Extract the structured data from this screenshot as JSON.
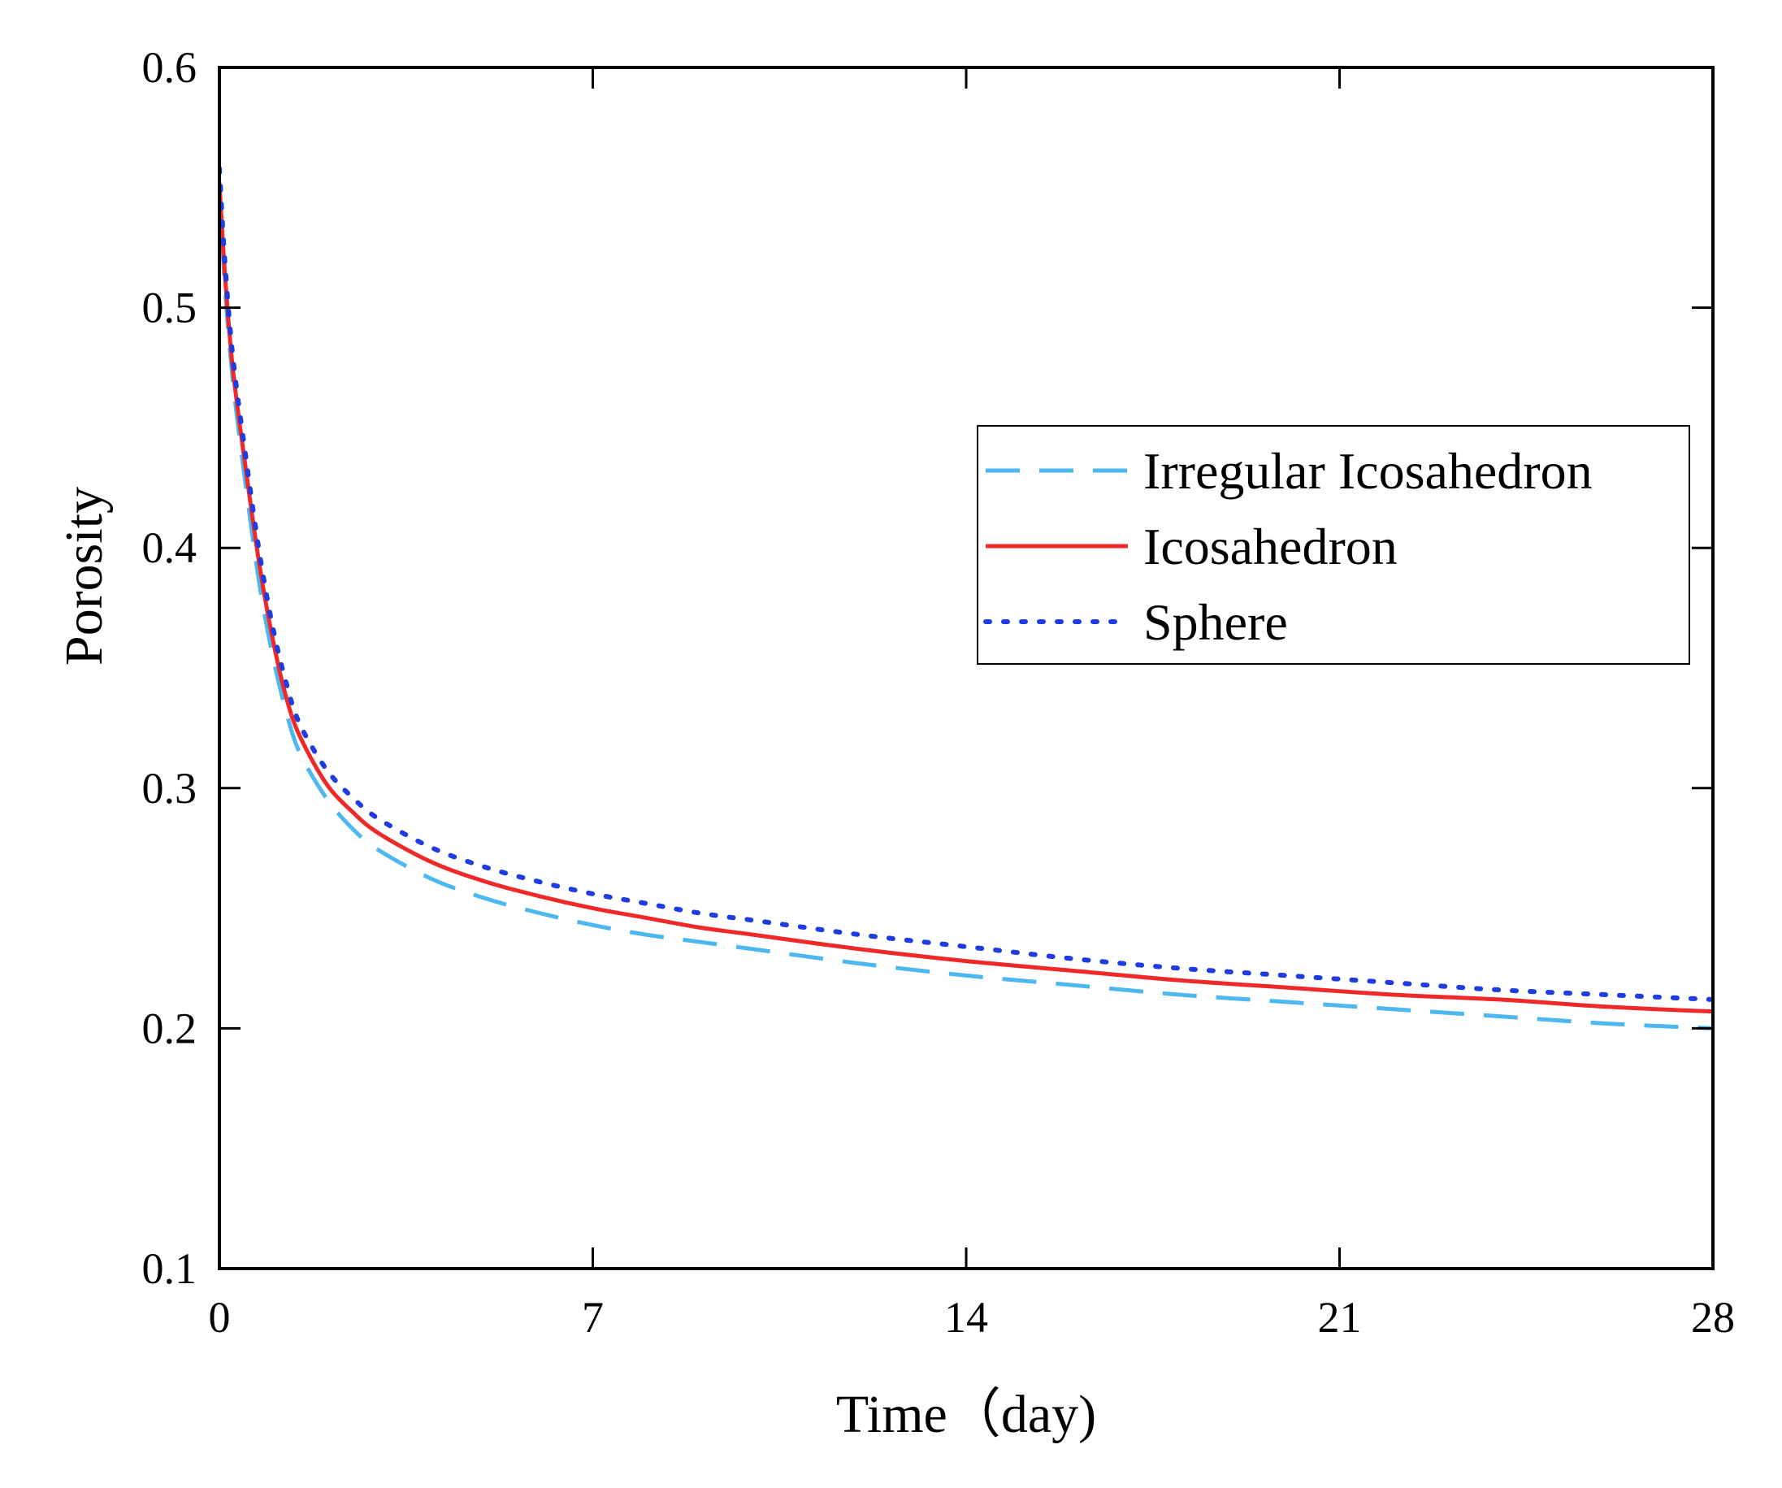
{
  "chart_data": {
    "type": "line",
    "title": "",
    "xlabel": "Time（day)",
    "ylabel": "Porosity",
    "xlim": [
      0,
      28
    ],
    "ylim": [
      0.1,
      0.6
    ],
    "xticks": [
      0,
      7,
      14,
      21,
      28
    ],
    "yticks": [
      0.1,
      0.2,
      0.3,
      0.4,
      0.5,
      0.6
    ],
    "xtick_labels": [
      "0",
      "7",
      "14",
      "21",
      "28"
    ],
    "ytick_labels": [
      "0.1",
      "0.2",
      "0.3",
      "0.4",
      "0.5",
      "0.6"
    ],
    "grid": false,
    "legend_position": "center-right",
    "x": [
      0,
      0.1,
      0.25,
      0.5,
      0.75,
      1,
      1.25,
      1.5,
      2,
      2.5,
      3,
      4,
      5,
      6,
      7,
      8,
      9,
      10,
      12,
      14,
      16,
      18,
      20,
      22,
      24,
      26,
      28
    ],
    "series": [
      {
        "name": "Irregular Icosahedron",
        "style": "dashed",
        "color": "#4db8f0",
        "values": [
          0.55,
          0.51,
          0.47,
          0.425,
          0.385,
          0.355,
          0.332,
          0.315,
          0.296,
          0.283,
          0.274,
          0.262,
          0.254,
          0.248,
          0.243,
          0.239,
          0.236,
          0.233,
          0.227,
          0.222,
          0.218,
          0.214,
          0.211,
          0.208,
          0.205,
          0.202,
          0.2
        ]
      },
      {
        "name": "Icosahedron",
        "style": "solid",
        "color": "#f02828",
        "values": [
          0.552,
          0.515,
          0.475,
          0.432,
          0.393,
          0.362,
          0.338,
          0.322,
          0.302,
          0.29,
          0.281,
          0.269,
          0.261,
          0.255,
          0.25,
          0.246,
          0.242,
          0.239,
          0.233,
          0.228,
          0.224,
          0.22,
          0.217,
          0.214,
          0.212,
          0.209,
          0.207
        ]
      },
      {
        "name": "Sphere",
        "style": "dotted",
        "color": "#1e3ce0",
        "values": [
          0.558,
          0.52,
          0.48,
          0.437,
          0.398,
          0.367,
          0.344,
          0.327,
          0.308,
          0.296,
          0.287,
          0.275,
          0.267,
          0.261,
          0.256,
          0.252,
          0.248,
          0.245,
          0.239,
          0.234,
          0.229,
          0.225,
          0.222,
          0.219,
          0.216,
          0.214,
          0.212
        ]
      }
    ]
  }
}
